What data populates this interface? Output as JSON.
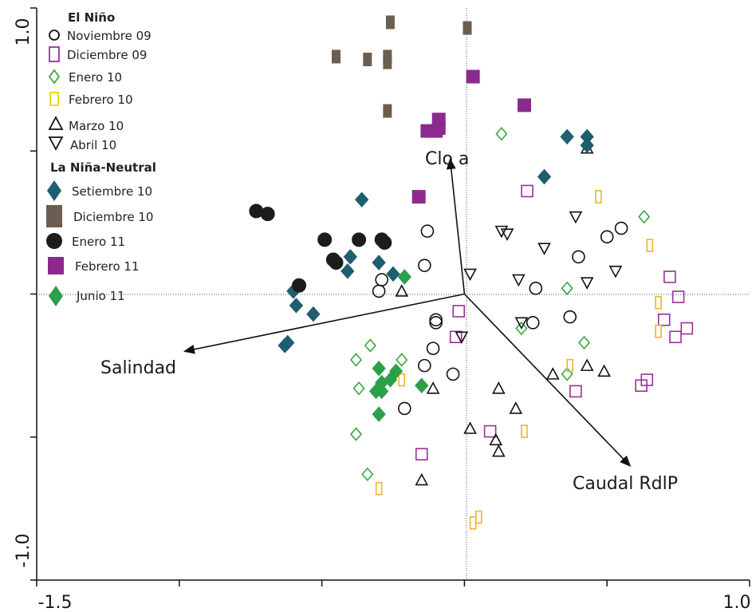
{
  "chart_data": {
    "type": "scatter",
    "title": "",
    "xlim": [
      -1.5,
      1.0
    ],
    "ylim": [
      -1.0,
      1.0
    ],
    "x_ticks": [
      -1.5,
      -1.0,
      -0.5,
      0.0,
      0.5,
      1.0
    ],
    "y_ticks": [
      -1.0,
      -0.5,
      0.0,
      0.5,
      1.0
    ],
    "x_tick_labels": [
      {
        "value": -1.5,
        "label": "-1.5"
      },
      {
        "value": 1.0,
        "label": "1.0"
      }
    ],
    "y_tick_labels": [
      {
        "value": -1.0,
        "label": "-1.0"
      },
      {
        "value": 1.0,
        "label": "1.0"
      }
    ],
    "zero_lines": "dotted",
    "legend": {
      "placement": "top-left",
      "groups": [
        {
          "title": "El Niño",
          "entries": [
            "Noviembre 09",
            "Diciembre 09",
            "Enero 10",
            "Febrero 10",
            "Marzo 10",
            "Abril 10"
          ]
        },
        {
          "title": "La Niña-Neutral",
          "entries": [
            "Setiembre 10",
            "Diciembre 10",
            "Enero 11",
            "Febrero 11",
            "Junio 11"
          ]
        }
      ]
    },
    "vectors": [
      {
        "label": "Clo a",
        "x": -0.05,
        "y": 0.47
      },
      {
        "label": "Salindad",
        "x": -0.98,
        "y": -0.2
      },
      {
        "label": "Caudal RdlP",
        "x": 0.58,
        "y": -0.6
      }
    ],
    "series": [
      {
        "name": "Noviembre 09",
        "marker": "circle-open",
        "color": "#111111",
        "points": [
          [
            -0.13,
            0.22
          ],
          [
            -0.14,
            0.1
          ],
          [
            -0.29,
            0.05
          ],
          [
            -0.3,
            0.01
          ],
          [
            -0.1,
            -0.09
          ],
          [
            -0.11,
            -0.19
          ],
          [
            -0.14,
            -0.25
          ],
          [
            -0.04,
            -0.28
          ],
          [
            -0.21,
            -0.4
          ],
          [
            0.25,
            0.02
          ],
          [
            0.4,
            0.13
          ],
          [
            0.5,
            0.2
          ],
          [
            0.55,
            0.23
          ],
          [
            0.24,
            -0.1
          ],
          [
            0.37,
            -0.08
          ],
          [
            -0.1,
            -0.1
          ]
        ]
      },
      {
        "name": "Diciembre 09",
        "marker": "square-open",
        "color": "#9b2f98",
        "points": [
          [
            0.22,
            0.36
          ],
          [
            -0.02,
            -0.06
          ],
          [
            -0.03,
            -0.15
          ],
          [
            0.72,
            0.06
          ],
          [
            0.75,
            -0.01
          ],
          [
            0.7,
            -0.09
          ],
          [
            0.74,
            -0.15
          ],
          [
            0.78,
            -0.12
          ],
          [
            0.64,
            -0.3
          ],
          [
            0.62,
            -0.32
          ],
          [
            0.39,
            -0.34
          ],
          [
            0.09,
            -0.48
          ],
          [
            -0.15,
            -0.56
          ]
        ]
      },
      {
        "name": "Enero 10",
        "marker": "diamond-open",
        "color": "#3aa840",
        "points": [
          [
            0.13,
            0.56
          ],
          [
            0.63,
            0.27
          ],
          [
            0.36,
            0.02
          ],
          [
            0.42,
            -0.17
          ],
          [
            0.2,
            -0.12
          ],
          [
            0.36,
            -0.28
          ],
          [
            -0.33,
            -0.18
          ],
          [
            -0.38,
            -0.23
          ],
          [
            -0.22,
            -0.23
          ],
          [
            -0.37,
            -0.33
          ],
          [
            -0.31,
            -0.34
          ],
          [
            -0.38,
            -0.49
          ],
          [
            -0.34,
            -0.63
          ]
        ]
      },
      {
        "name": "Febrero 10",
        "marker": "rect-open",
        "color": "#f0b429",
        "points": [
          [
            0.47,
            0.34
          ],
          [
            0.65,
            0.17
          ],
          [
            0.68,
            -0.03
          ],
          [
            0.68,
            -0.13
          ],
          [
            0.37,
            -0.25
          ],
          [
            -0.22,
            -0.3
          ],
          [
            0.21,
            -0.48
          ],
          [
            -0.3,
            -0.68
          ],
          [
            0.05,
            -0.78
          ],
          [
            0.03,
            -0.8
          ]
        ]
      },
      {
        "name": "Marzo 10",
        "marker": "triangle-up-open",
        "color": "#111111",
        "points": [
          [
            0.43,
            0.51
          ],
          [
            -0.22,
            0.01
          ],
          [
            -0.11,
            -0.33
          ],
          [
            0.12,
            -0.33
          ],
          [
            0.18,
            -0.4
          ],
          [
            0.31,
            -0.28
          ],
          [
            0.43,
            -0.25
          ],
          [
            0.49,
            -0.27
          ],
          [
            0.02,
            -0.47
          ],
          [
            0.11,
            -0.51
          ],
          [
            0.12,
            -0.55
          ],
          [
            -0.15,
            -0.65
          ]
        ]
      },
      {
        "name": "Abril 10",
        "marker": "triangle-down-open",
        "color": "#111111",
        "points": [
          [
            0.39,
            0.27
          ],
          [
            0.13,
            0.22
          ],
          [
            0.15,
            0.21
          ],
          [
            0.28,
            0.16
          ],
          [
            0.53,
            0.08
          ],
          [
            0.19,
            0.05
          ],
          [
            0.43,
            0.04
          ],
          [
            0.02,
            0.07
          ],
          [
            0.2,
            -0.1
          ],
          [
            -0.01,
            -0.15
          ]
        ]
      },
      {
        "name": "Setiembre 10",
        "marker": "diamond-filled",
        "color": "#1f5d70",
        "points": [
          [
            0.36,
            0.55
          ],
          [
            0.43,
            0.55
          ],
          [
            0.43,
            0.52
          ],
          [
            0.28,
            0.41
          ],
          [
            -0.36,
            0.33
          ],
          [
            -0.4,
            0.13
          ],
          [
            -0.41,
            0.08
          ],
          [
            -0.3,
            0.11
          ],
          [
            -0.25,
            0.07
          ],
          [
            -0.6,
            0.01
          ],
          [
            -0.59,
            -0.04
          ],
          [
            -0.53,
            -0.07
          ],
          [
            -0.62,
            -0.17
          ],
          [
            -0.63,
            -0.18
          ]
        ]
      },
      {
        "name": "Diciembre 10",
        "marker": "rect-filled",
        "color": "#6b5e50",
        "points": [
          [
            -0.26,
            0.95
          ],
          [
            0.01,
            0.93
          ],
          [
            -0.45,
            0.83
          ],
          [
            -0.34,
            0.82
          ],
          [
            -0.27,
            0.83
          ],
          [
            -0.27,
            0.81
          ],
          [
            -0.27,
            0.64
          ]
        ]
      },
      {
        "name": "Enero 11",
        "marker": "circle-filled",
        "color": "#1c1c1c",
        "points": [
          [
            -0.73,
            0.29
          ],
          [
            -0.69,
            0.28
          ],
          [
            -0.49,
            0.19
          ],
          [
            -0.37,
            0.19
          ],
          [
            -0.29,
            0.19
          ],
          [
            -0.28,
            0.18
          ],
          [
            -0.46,
            0.12
          ],
          [
            -0.45,
            0.11
          ],
          [
            -0.58,
            0.03
          ]
        ]
      },
      {
        "name": "Febrero 11",
        "marker": "square-filled",
        "color": "#8b2a8c",
        "points": [
          [
            0.03,
            0.76
          ],
          [
            0.21,
            0.66
          ],
          [
            -0.09,
            0.61
          ],
          [
            -0.1,
            0.57
          ],
          [
            -0.13,
            0.57
          ],
          [
            -0.09,
            0.58
          ],
          [
            -0.16,
            0.34
          ]
        ]
      },
      {
        "name": "Junio 11",
        "marker": "diamond-filled",
        "color": "#2d9f4a",
        "points": [
          [
            -0.21,
            0.06
          ],
          [
            -0.3,
            -0.26
          ],
          [
            -0.24,
            -0.27
          ],
          [
            -0.26,
            -0.3
          ],
          [
            -0.29,
            -0.31
          ],
          [
            -0.29,
            -0.34
          ],
          [
            -0.31,
            -0.34
          ],
          [
            -0.15,
            -0.32
          ],
          [
            -0.3,
            -0.42
          ]
        ]
      }
    ]
  }
}
